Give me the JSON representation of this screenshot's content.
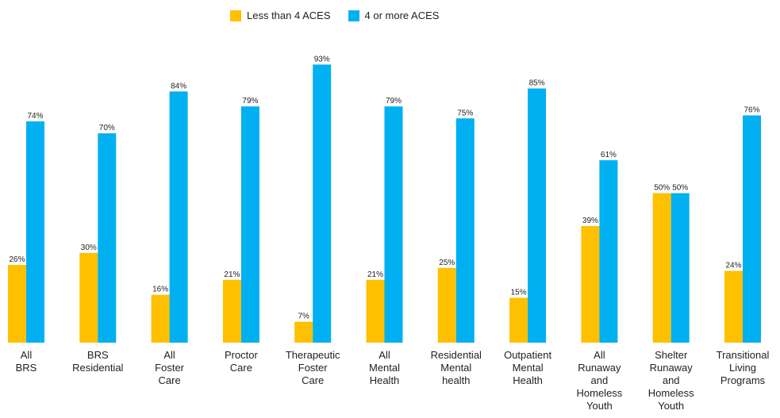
{
  "chart_data": {
    "type": "bar",
    "title": "",
    "xlabel": "",
    "ylabel": "",
    "ylim": [
      0,
      100
    ],
    "grid": false,
    "legend_position": "top",
    "categories": [
      [
        "All",
        "BRS"
      ],
      [
        "BRS",
        "Residential"
      ],
      [
        "All",
        "Foster",
        "Care"
      ],
      [
        "Proctor",
        "Care"
      ],
      [
        "Therapeutic",
        "Foster",
        "Care"
      ],
      [
        "All",
        "Mental",
        "Health"
      ],
      [
        "Residential",
        "Mental",
        "health"
      ],
      [
        "Outpatient",
        "Mental",
        "Health"
      ],
      [
        "All",
        "Runaway",
        "and",
        "Homeless",
        "Youth"
      ],
      [
        "Shelter",
        "Runaway",
        "and",
        "Homeless",
        "Youth"
      ],
      [
        "Transitional",
        "Living",
        "Programs"
      ]
    ],
    "series": [
      {
        "name": "Less than 4 ACES",
        "color": "#FFC000",
        "values": [
          26,
          30,
          16,
          21,
          7,
          21,
          25,
          15,
          39,
          50,
          24
        ]
      },
      {
        "name": "4 or more ACES",
        "color": "#00B0F0",
        "values": [
          74,
          70,
          84,
          79,
          93,
          79,
          75,
          85,
          61,
          50,
          76
        ]
      }
    ],
    "value_suffix": "%"
  }
}
